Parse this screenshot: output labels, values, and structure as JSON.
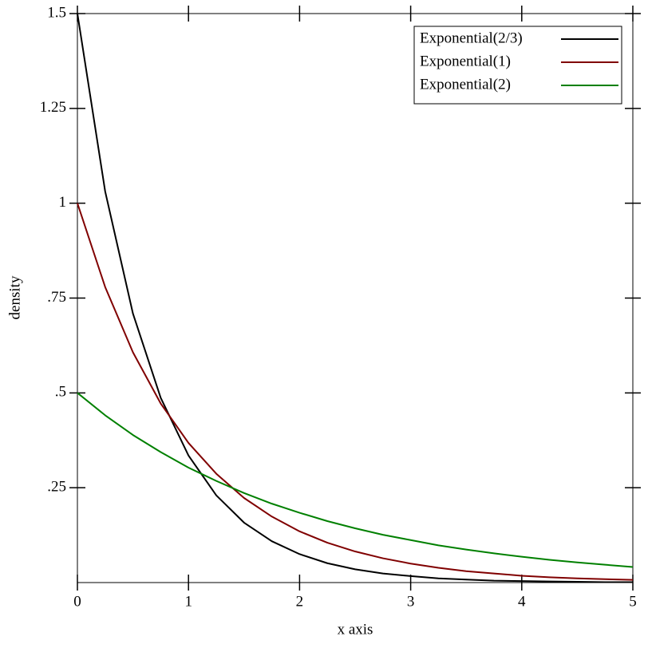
{
  "chart_data": {
    "type": "line",
    "xlabel": "x axis",
    "ylabel": "density",
    "x": [
      0,
      0.25,
      0.5,
      0.75,
      1,
      1.25,
      1.5,
      1.75,
      2,
      2.25,
      2.5,
      2.75,
      3,
      3.25,
      3.5,
      3.75,
      4,
      4.25,
      4.5,
      4.75,
      5
    ],
    "series": [
      {
        "name": "Exponential(2/3)",
        "color": "#000000",
        "values": [
          1.5,
          1.031,
          0.709,
          0.487,
          0.335,
          0.23,
          0.158,
          0.109,
          0.075,
          0.051,
          0.035,
          0.024,
          0.017,
          0.011,
          0.008,
          0.005,
          0.004,
          0.003,
          0.002,
          0.001,
          0.001
        ]
      },
      {
        "name": "Exponential(1)",
        "color": "#800000",
        "values": [
          1,
          0.779,
          0.607,
          0.472,
          0.368,
          0.287,
          0.223,
          0.174,
          0.135,
          0.105,
          0.082,
          0.064,
          0.05,
          0.039,
          0.03,
          0.024,
          0.018,
          0.014,
          0.011,
          0.009,
          0.007
        ]
      },
      {
        "name": "Exponential(2)",
        "color": "#008000",
        "values": [
          0.5,
          0.441,
          0.389,
          0.344,
          0.303,
          0.268,
          0.236,
          0.208,
          0.184,
          0.162,
          0.143,
          0.126,
          0.112,
          0.098,
          0.087,
          0.077,
          0.068,
          0.06,
          0.053,
          0.047,
          0.041
        ]
      }
    ],
    "xlim": [
      0,
      5
    ],
    "xticks": [
      0,
      1,
      2,
      3,
      4,
      5
    ],
    "ylim": [
      0,
      1.5
    ],
    "yticks": [
      {
        "value": 0.25,
        "label": ".25"
      },
      {
        "value": 0.5,
        "label": ".5"
      },
      {
        "value": 0.75,
        "label": ".75"
      },
      1,
      1.25,
      1.5
    ],
    "legend": "top-right"
  }
}
